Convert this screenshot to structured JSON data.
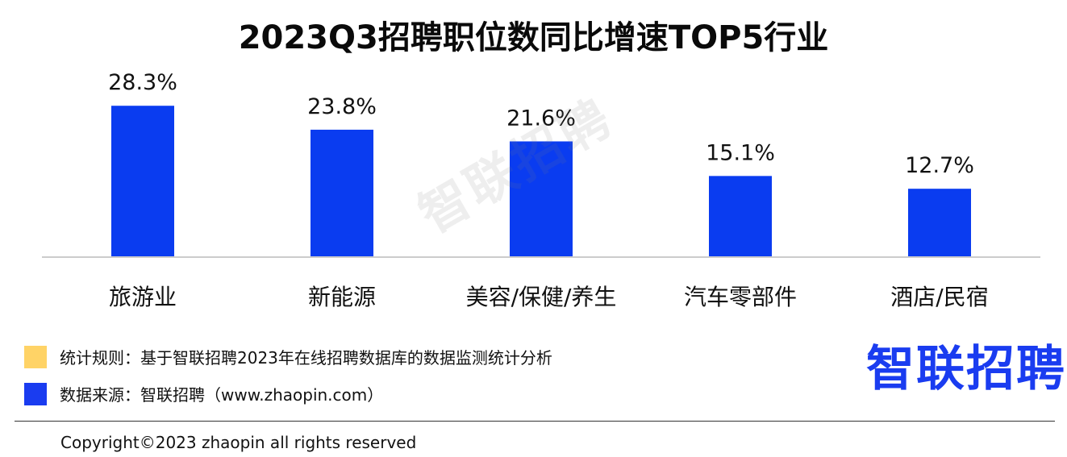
{
  "colors": {
    "bar": "#0a3cf0",
    "axis": "#cccccc",
    "rule_swatch": "#ffd366",
    "source_swatch": "#1a3cf0"
  },
  "chart_data": {
    "type": "bar",
    "title": "2023Q3招聘职位数同比增速TOP5行业",
    "categories": [
      "旅游业",
      "新能源",
      "美容/保健/养生",
      "汽车零部件",
      "酒店/民宿"
    ],
    "values": [
      28.3,
      23.8,
      21.6,
      15.1,
      12.7
    ],
    "data_labels": [
      "28.3%",
      "23.8%",
      "21.6%",
      "15.1%",
      "12.7%"
    ],
    "ylim": [
      0,
      30
    ],
    "grid": false,
    "legend": "none"
  },
  "watermark": "智联招聘",
  "footnotes": {
    "rule": "统计规则：基于智联招聘2023年在线招聘数据库的数据监测统计分析",
    "source": "数据来源：智联招聘（www.zhaopin.com）"
  },
  "logo": "智联招聘",
  "copyright": "Copyright©2023 zhaopin all rights reserved"
}
